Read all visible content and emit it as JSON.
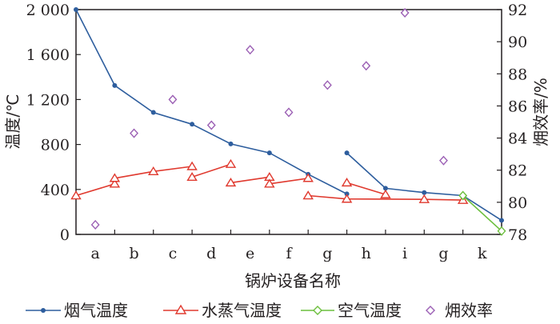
{
  "chart_data": {
    "type": "line",
    "xlabel": "锅炉设备名称",
    "ylabel_left": "温度/℃",
    "ylabel_right": "㶲效率/%",
    "categories": [
      "a",
      "b",
      "c",
      "d",
      "e",
      "f",
      "g",
      "h",
      "i",
      "g",
      "k"
    ],
    "y_left": {
      "min": 0,
      "max": 2000,
      "ticks": [
        0,
        400,
        800,
        1200,
        1600,
        2000
      ],
      "tick_labels": [
        "0",
        "400",
        "800",
        "1 200",
        "1 600",
        "2 000"
      ]
    },
    "y_right": {
      "min": 78,
      "max": 92,
      "ticks": [
        78,
        80,
        82,
        84,
        86,
        88,
        90,
        92
      ],
      "tick_labels": [
        "78",
        "80",
        "82",
        "84",
        "86",
        "88",
        "90",
        "92"
      ]
    },
    "grid": false,
    "legend_position": "bottom",
    "series": [
      {
        "name": "烟气温度",
        "axis": "left",
        "color": "#2e5e9e",
        "marker": "dot",
        "segments": [
          [
            [
              -0.5,
              2000
            ],
            [
              0.5,
              1325
            ],
            [
              1.5,
              1085
            ],
            [
              2.5,
              980
            ],
            [
              3.5,
              805
            ],
            [
              4.5,
              725
            ],
            [
              5.5,
              535
            ],
            [
              6.5,
              360
            ]
          ],
          [
            [
              6.5,
              725
            ],
            [
              7.5,
              410
            ],
            [
              8.5,
              372
            ],
            [
              9.5,
              345
            ],
            [
              10.5,
              125
            ]
          ]
        ]
      },
      {
        "name": "水蒸气温度",
        "axis": "left",
        "color": "#e03a2f",
        "marker": "triangle",
        "segments": [
          [
            [
              -0.5,
              345
            ],
            [
              0.5,
              450
            ]
          ],
          [
            [
              0.5,
              500
            ],
            [
              1.5,
              560
            ],
            [
              2.5,
              605
            ]
          ],
          [
            [
              2.5,
              510
            ],
            [
              3.5,
              625
            ]
          ],
          [
            [
              3.5,
              460
            ],
            [
              4.5,
              510
            ]
          ],
          [
            [
              4.5,
              450
            ],
            [
              5.5,
              500
            ]
          ],
          [
            [
              5.5,
              345
            ],
            [
              6.5,
              315
            ],
            [
              8.5,
              312
            ],
            [
              9.5,
              305
            ]
          ],
          [
            [
              6.5,
              460
            ],
            [
              7.5,
              355
            ]
          ]
        ]
      },
      {
        "name": "空气温度",
        "axis": "left",
        "color": "#6cbf3d",
        "marker": "diamond",
        "segments": [
          [
            [
              9.5,
              345
            ],
            [
              10.5,
              30
            ]
          ]
        ]
      },
      {
        "name": "㶲效率",
        "axis": "right",
        "color": "#9b5fb4",
        "marker": "diamond-open",
        "points": [
          [
            0.0,
            78.6
          ],
          [
            1.0,
            84.3
          ],
          [
            2.0,
            86.4
          ],
          [
            3.0,
            84.8
          ],
          [
            4.0,
            89.5
          ],
          [
            5.0,
            85.6
          ],
          [
            6.0,
            87.3
          ],
          [
            7.0,
            88.5
          ],
          [
            8.0,
            91.8
          ],
          [
            9.0,
            82.6
          ]
        ]
      }
    ]
  }
}
